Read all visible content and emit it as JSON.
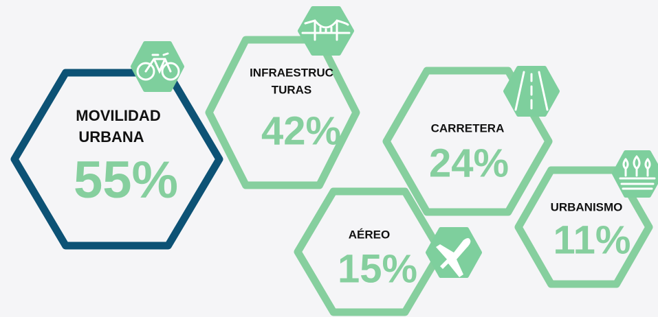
{
  "items": [
    {
      "label_lines": [
        "MOVILIDAD",
        "URBANA"
      ],
      "value": "55%"
    },
    {
      "label_lines": [
        "INFRAESTRUC",
        "TURAS"
      ],
      "value": "42%"
    },
    {
      "label_lines": [
        "CARRETERA"
      ],
      "value": "24%"
    },
    {
      "label_lines": [
        "AÉREO"
      ],
      "value": "15%"
    },
    {
      "label_lines": [
        "URBANISMO"
      ],
      "value": "11%"
    }
  ]
}
